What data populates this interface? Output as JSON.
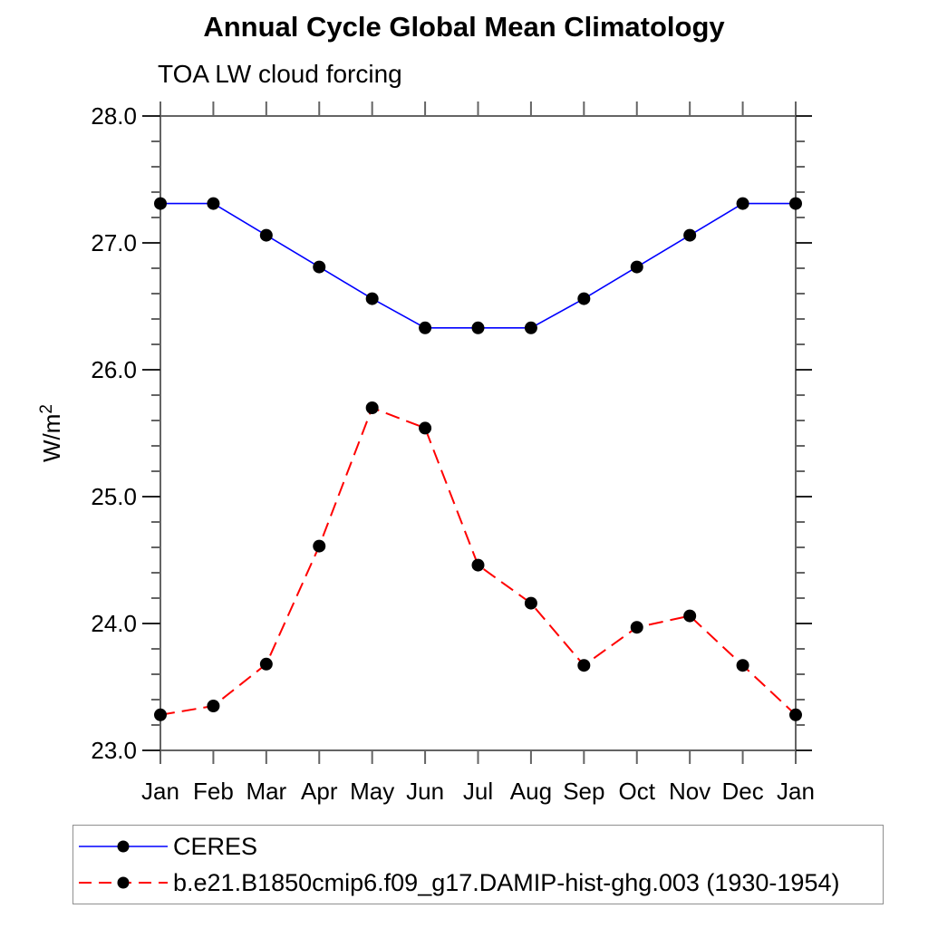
{
  "chart_data": {
    "type": "line",
    "title": "Annual Cycle Global Mean Climatology",
    "subtitle": "TOA LW cloud forcing",
    "ylabel": "W/m",
    "ylabel_superscript": "2",
    "ylim": [
      23.0,
      28.0
    ],
    "ytick_major_interval": 1.0,
    "ytick_minor_interval": 0.2,
    "ytick_labels": [
      "23.0",
      "24.0",
      "25.0",
      "26.0",
      "27.0",
      "28.0"
    ],
    "categories": [
      "Jan",
      "Feb",
      "Mar",
      "Apr",
      "May",
      "Jun",
      "Jul",
      "Aug",
      "Sep",
      "Oct",
      "Nov",
      "Dec",
      "Jan"
    ],
    "grid": false,
    "legend_position": "bottom-left-box",
    "marker": {
      "shape": "circle",
      "color": "#000000",
      "radius": 7
    },
    "series": [
      {
        "name": "CERES",
        "color": "#0000ff",
        "line_style": "solid",
        "values": [
          27.31,
          27.31,
          27.06,
          26.81,
          26.56,
          26.33,
          26.33,
          26.33,
          26.56,
          26.81,
          27.06,
          27.31,
          27.31
        ]
      },
      {
        "name": "b.e21.B1850cmip6.f09_g17.DAMIP-hist-ghg.003 (1930-1954)",
        "color": "#ff0000",
        "line_style": "dashed",
        "values": [
          23.28,
          23.35,
          23.68,
          24.61,
          25.7,
          25.54,
          24.46,
          24.16,
          23.67,
          23.97,
          24.06,
          23.67,
          23.28
        ]
      }
    ]
  }
}
